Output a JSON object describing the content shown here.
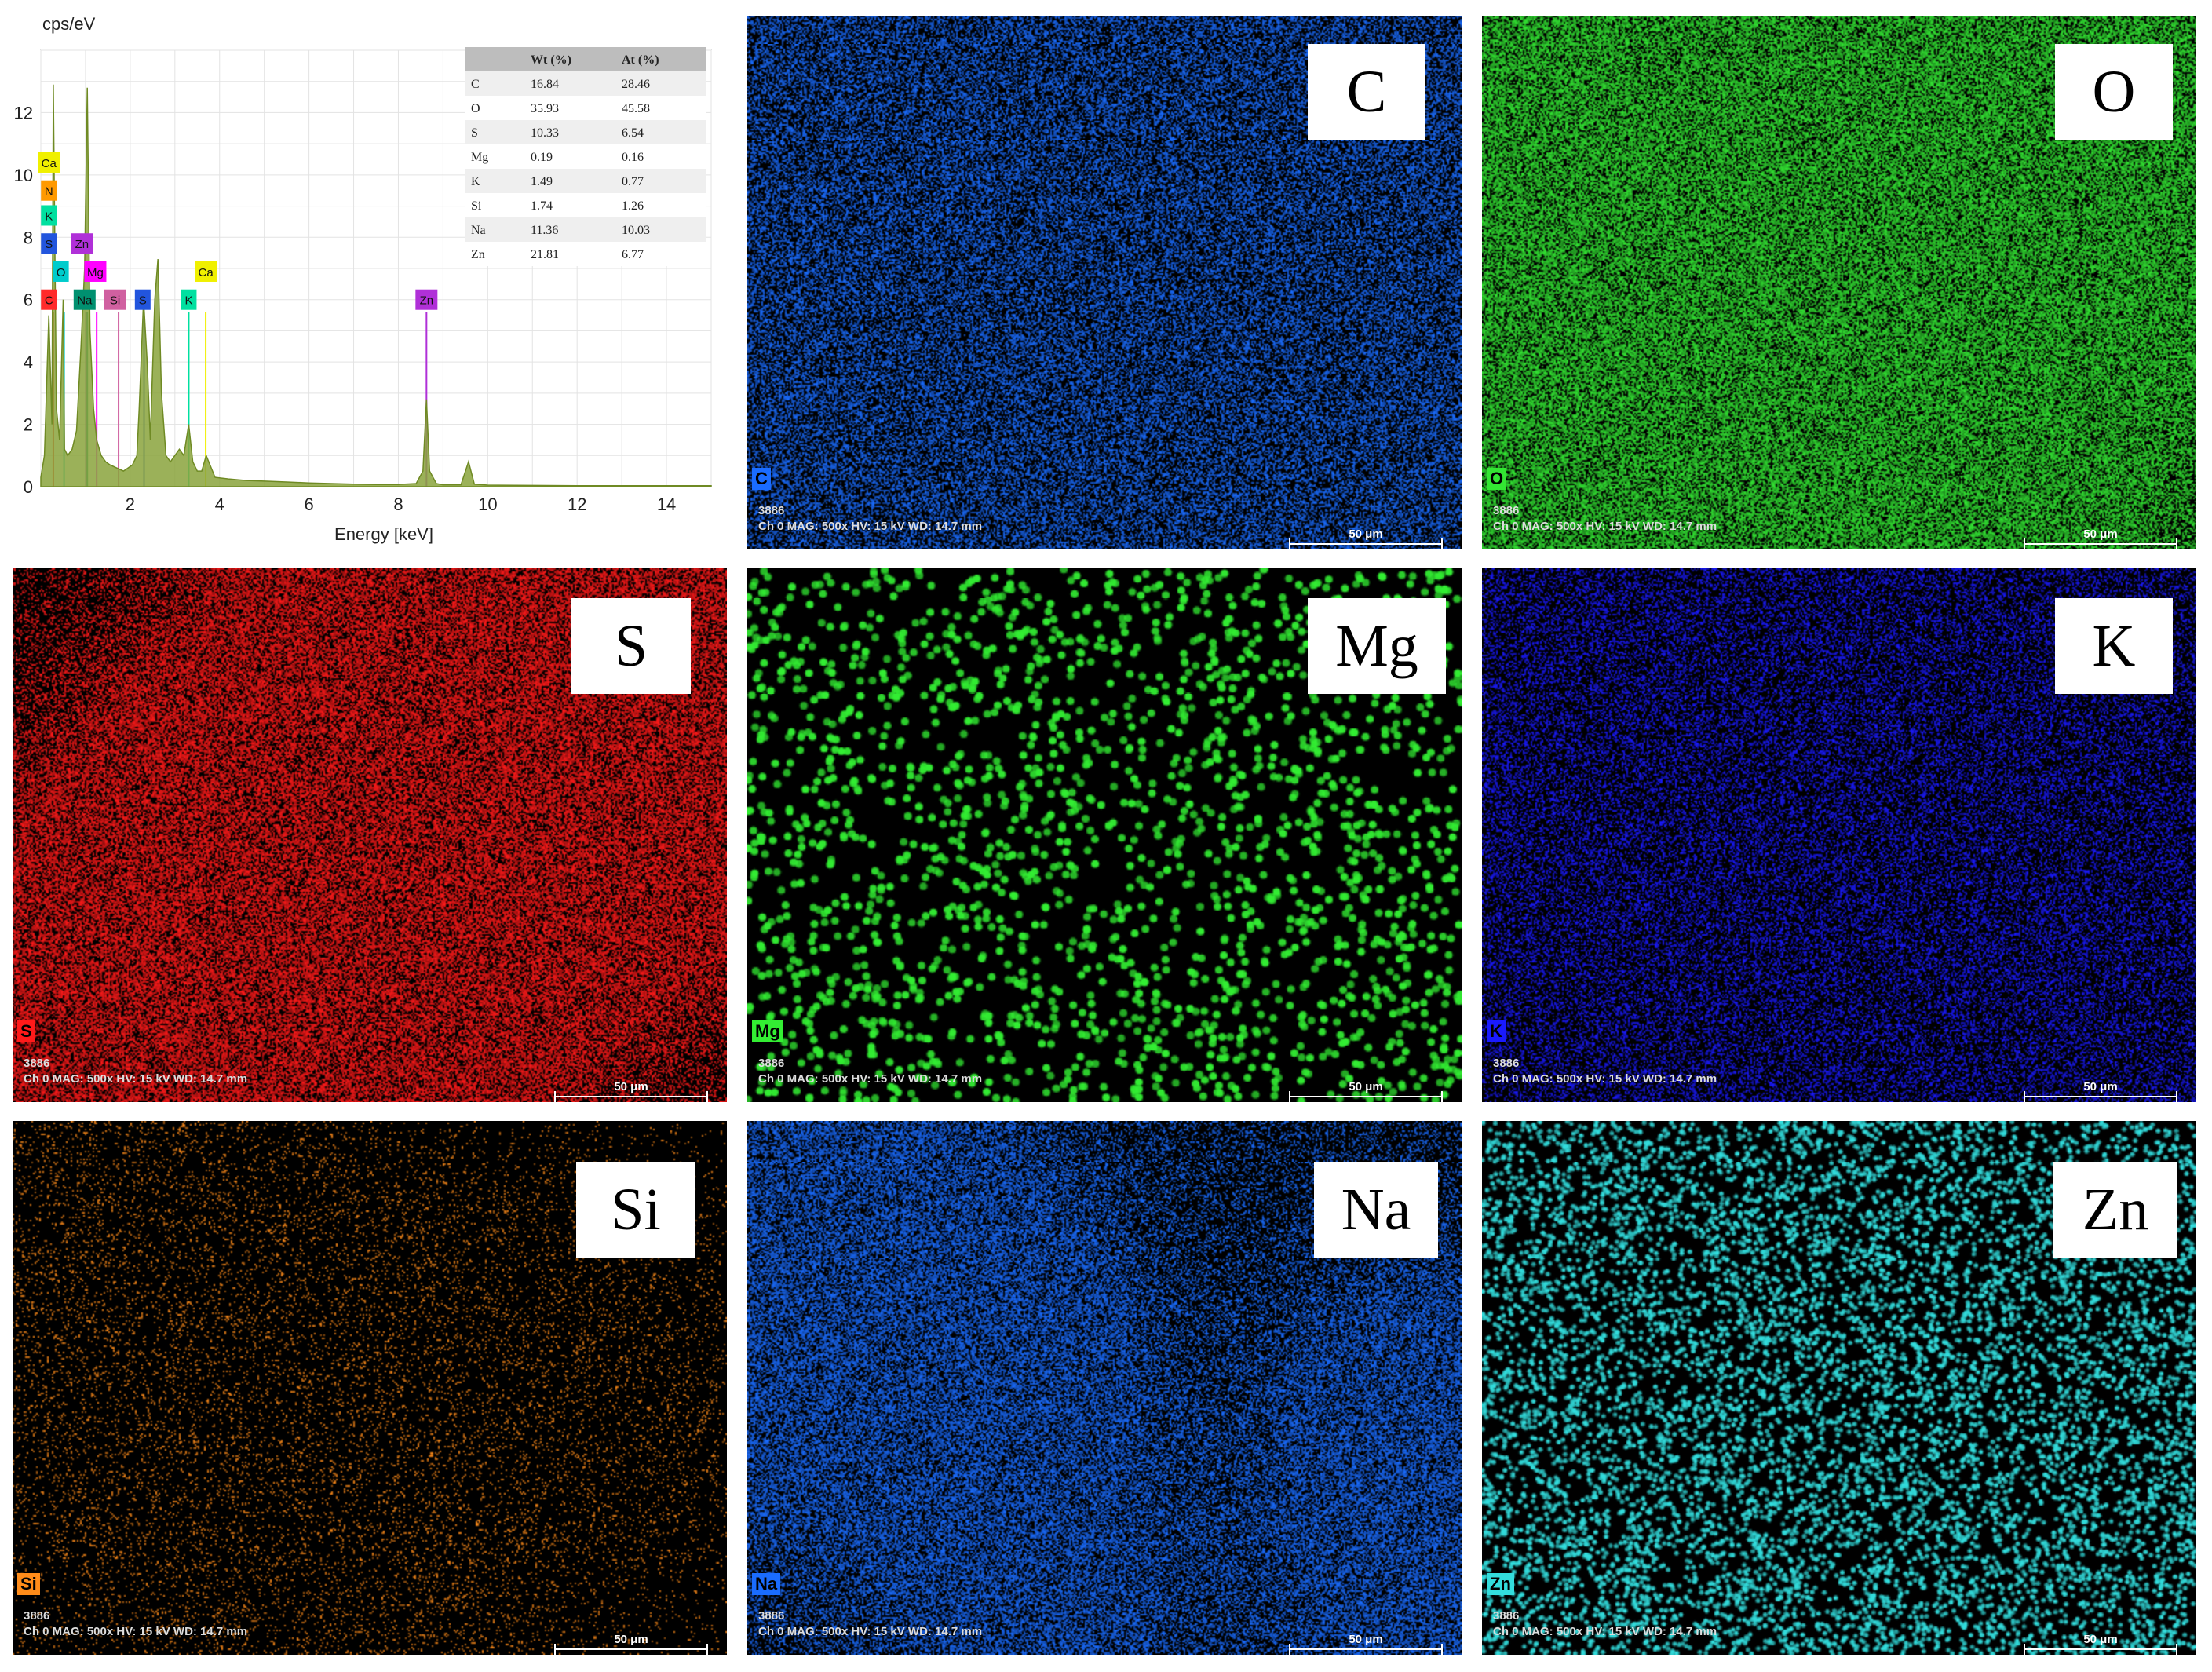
{
  "chart_data": {
    "type": "line",
    "title": "",
    "xlabel": "Energy [keV]",
    "ylabel": "cps/eV",
    "xlim": [
      0,
      15
    ],
    "ylim": [
      0,
      14
    ],
    "x_ticks": [
      "2",
      "4",
      "6",
      "8",
      "10",
      "12",
      "14"
    ],
    "y_ticks": [
      "0",
      "2",
      "4",
      "6",
      "8",
      "10",
      "12"
    ],
    "grid": true,
    "fill_color": "#8aa33c",
    "series": [
      {
        "name": "",
        "x": [
          0.0,
          0.08,
          0.18,
          0.25,
          0.28,
          0.35,
          0.42,
          0.5,
          0.53,
          0.6,
          0.7,
          0.8,
          0.9,
          0.98,
          1.04,
          1.1,
          1.18,
          1.25,
          1.35,
          1.45,
          1.55,
          1.7,
          1.85,
          1.95,
          2.05,
          2.15,
          2.2,
          2.3,
          2.38,
          2.45,
          2.55,
          2.62,
          2.7,
          2.8,
          2.9,
          3.0,
          3.1,
          3.2,
          3.31,
          3.4,
          3.5,
          3.6,
          3.7,
          3.9,
          4.2,
          4.6,
          5.0,
          5.5,
          6.0,
          6.5,
          7.0,
          7.5,
          8.0,
          8.4,
          8.55,
          8.63,
          8.7,
          8.85,
          9.0,
          9.4,
          9.57,
          9.7,
          10.0,
          11.0,
          12.0,
          13.0,
          14.0,
          15.0
        ],
        "y": [
          0.3,
          1.0,
          5.5,
          2.0,
          12.9,
          2.5,
          1.5,
          6.0,
          1.2,
          1.0,
          1.2,
          1.8,
          4.5,
          7.0,
          12.8,
          5.0,
          2.5,
          1.5,
          1.0,
          0.8,
          0.7,
          0.6,
          0.5,
          0.6,
          0.7,
          1.0,
          2.5,
          6.0,
          4.0,
          1.5,
          6.0,
          7.3,
          3.0,
          1.0,
          0.8,
          1.0,
          1.2,
          1.0,
          2.0,
          0.8,
          0.5,
          0.5,
          1.0,
          0.3,
          0.25,
          0.2,
          0.18,
          0.15,
          0.12,
          0.1,
          0.08,
          0.07,
          0.07,
          0.1,
          0.5,
          2.8,
          0.5,
          0.1,
          0.06,
          0.06,
          0.8,
          0.08,
          0.05,
          0.04,
          0.03,
          0.03,
          0.03,
          0.03
        ]
      }
    ],
    "peak_markers": [
      {
        "label": "C",
        "x": 0.28,
        "color": "#ff2a2a"
      },
      {
        "label": "O",
        "x": 0.52,
        "color": "#00cccc"
      },
      {
        "label": "Zn",
        "x": 1.01,
        "color": "#b030d8"
      },
      {
        "label": "Na",
        "x": 1.04,
        "color": "#009070"
      },
      {
        "label": "Mg",
        "x": 1.25,
        "color": "#ff00ff"
      },
      {
        "label": "Si",
        "x": 1.74,
        "color": "#d060a0"
      },
      {
        "label": "S",
        "x": 2.31,
        "color": "#2255dd"
      },
      {
        "label": "K",
        "x": 3.31,
        "color": "#00e0a0"
      },
      {
        "label": "Ca",
        "x": 3.69,
        "color": "#f0f000"
      },
      {
        "label": "Zn",
        "x": 8.63,
        "color": "#b030d8"
      }
    ],
    "left_stack_labels": [
      {
        "label": "Ca",
        "color": "#f0f000"
      },
      {
        "label": "N",
        "color": "#ff9900"
      },
      {
        "label": "K",
        "color": "#00e0a0"
      },
      {
        "label": "S",
        "color": "#2255dd"
      }
    ],
    "table": {
      "headers": [
        "",
        "Wt (%)",
        "At (%)"
      ],
      "rows": [
        [
          "C",
          "16.84",
          "28.46"
        ],
        [
          "O",
          "35.93",
          "45.58"
        ],
        [
          "S",
          "10.33",
          "6.54"
        ],
        [
          "Mg",
          "0.19",
          "0.16"
        ],
        [
          "K",
          "1.49",
          "0.77"
        ],
        [
          "Si",
          "1.74",
          "1.26"
        ],
        [
          "Na",
          "11.36",
          "10.03"
        ],
        [
          "Zn",
          "21.81",
          "6.77"
        ]
      ]
    }
  },
  "maps": [
    {
      "element": "C",
      "color": "#1a6cff",
      "density": 0.45,
      "dot": 2,
      "blotches": 0.3
    },
    {
      "element": "O",
      "color": "#33e633",
      "density": 0.55,
      "dot": 2,
      "blotches": 0.8
    },
    {
      "element": "S",
      "color": "#ff1a1a",
      "density": 0.5,
      "dot": 2,
      "blotches": 0.9
    },
    {
      "element": "Mg",
      "color": "#33ee33",
      "density": 0.06,
      "dot": 5,
      "blotches": 0.0
    },
    {
      "element": "K",
      "color": "#1a1aff",
      "density": 0.35,
      "dot": 2,
      "blotches": 0.3
    },
    {
      "element": "Si",
      "color": "#ff8c1a",
      "density": 0.08,
      "dot": 2,
      "blotches": 1.0
    },
    {
      "element": "Na",
      "color": "#1a6cff",
      "density": 0.5,
      "dot": 2,
      "blotches": 0.6
    },
    {
      "element": "Zn",
      "color": "#33dddd",
      "density": 0.16,
      "dot": 3,
      "blotches": 0.1
    }
  ],
  "map_meta": {
    "image_no": "3886",
    "line2": "Ch 0   MAG: 500x   HV: 15 kV   WD: 14.7 mm",
    "scale_bar": "50 μm"
  }
}
